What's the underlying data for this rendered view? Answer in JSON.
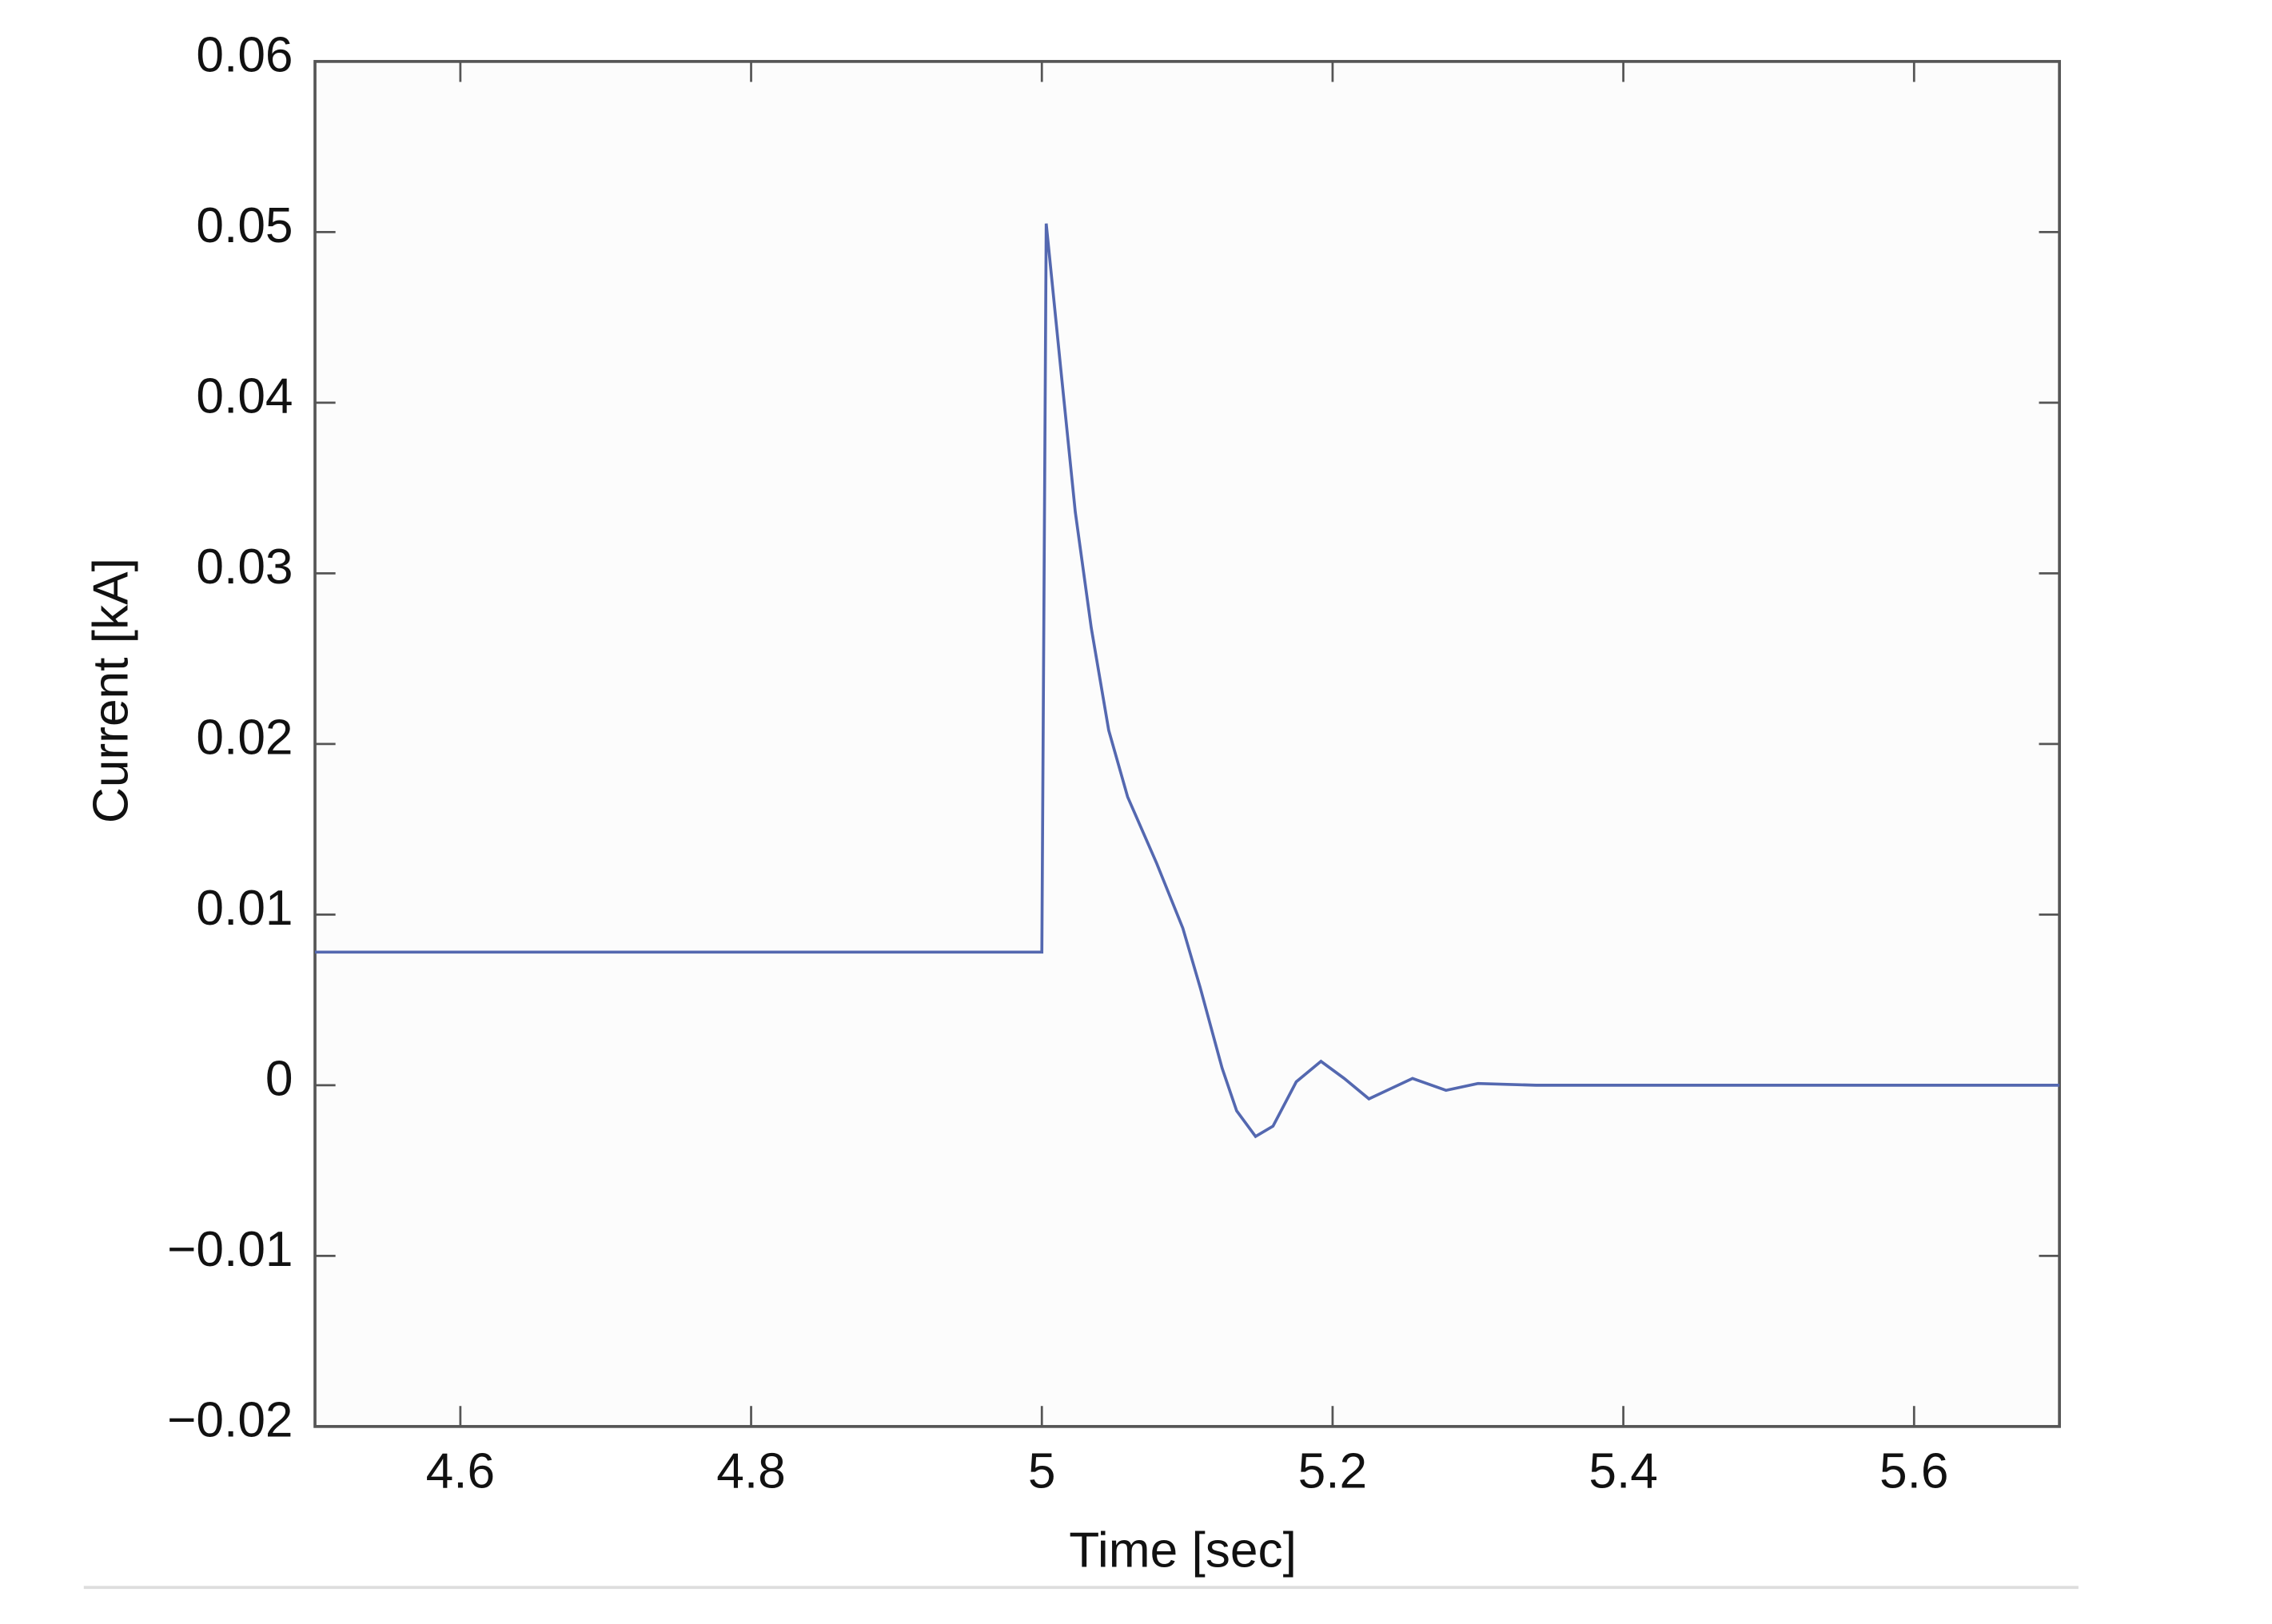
{
  "chart_data": {
    "type": "line",
    "xlabel": "Time [sec]",
    "ylabel": "Current [kA]",
    "x": [
      4.5,
      5.0,
      5.003,
      5.013,
      5.023,
      5.034,
      5.046,
      5.059,
      5.079,
      5.097,
      5.109,
      5.124,
      5.134,
      5.147,
      5.159,
      5.175,
      5.192,
      5.208,
      5.225,
      5.24,
      5.255,
      5.278,
      5.3,
      5.34,
      5.7
    ],
    "series": [
      {
        "color": "#5468b0",
        "values": [
          0.0078,
          0.0078,
          0.0505,
          0.042,
          0.0336,
          0.0268,
          0.0208,
          0.0169,
          0.013,
          0.0092,
          0.0057,
          0.001,
          -0.0015,
          -0.003,
          -0.0024,
          0.0002,
          0.0014,
          0.0004,
          -0.0008,
          -0.0002,
          0.0004,
          -0.0003,
          0.0001,
          0,
          0
        ]
      }
    ],
    "xlim": [
      4.5,
      5.7
    ],
    "xticks": [
      4.6,
      4.8,
      5,
      5.2,
      5.4,
      5.6
    ],
    "ylim": [
      -0.02,
      0.06
    ],
    "yticks": [
      {
        "value": -0.02,
        "label": "−0.02"
      },
      {
        "value": -0.01,
        "label": "−0.01"
      },
      0,
      0.01,
      0.02,
      0.03,
      0.04,
      0.05,
      0.06
    ],
    "grid": false
  }
}
